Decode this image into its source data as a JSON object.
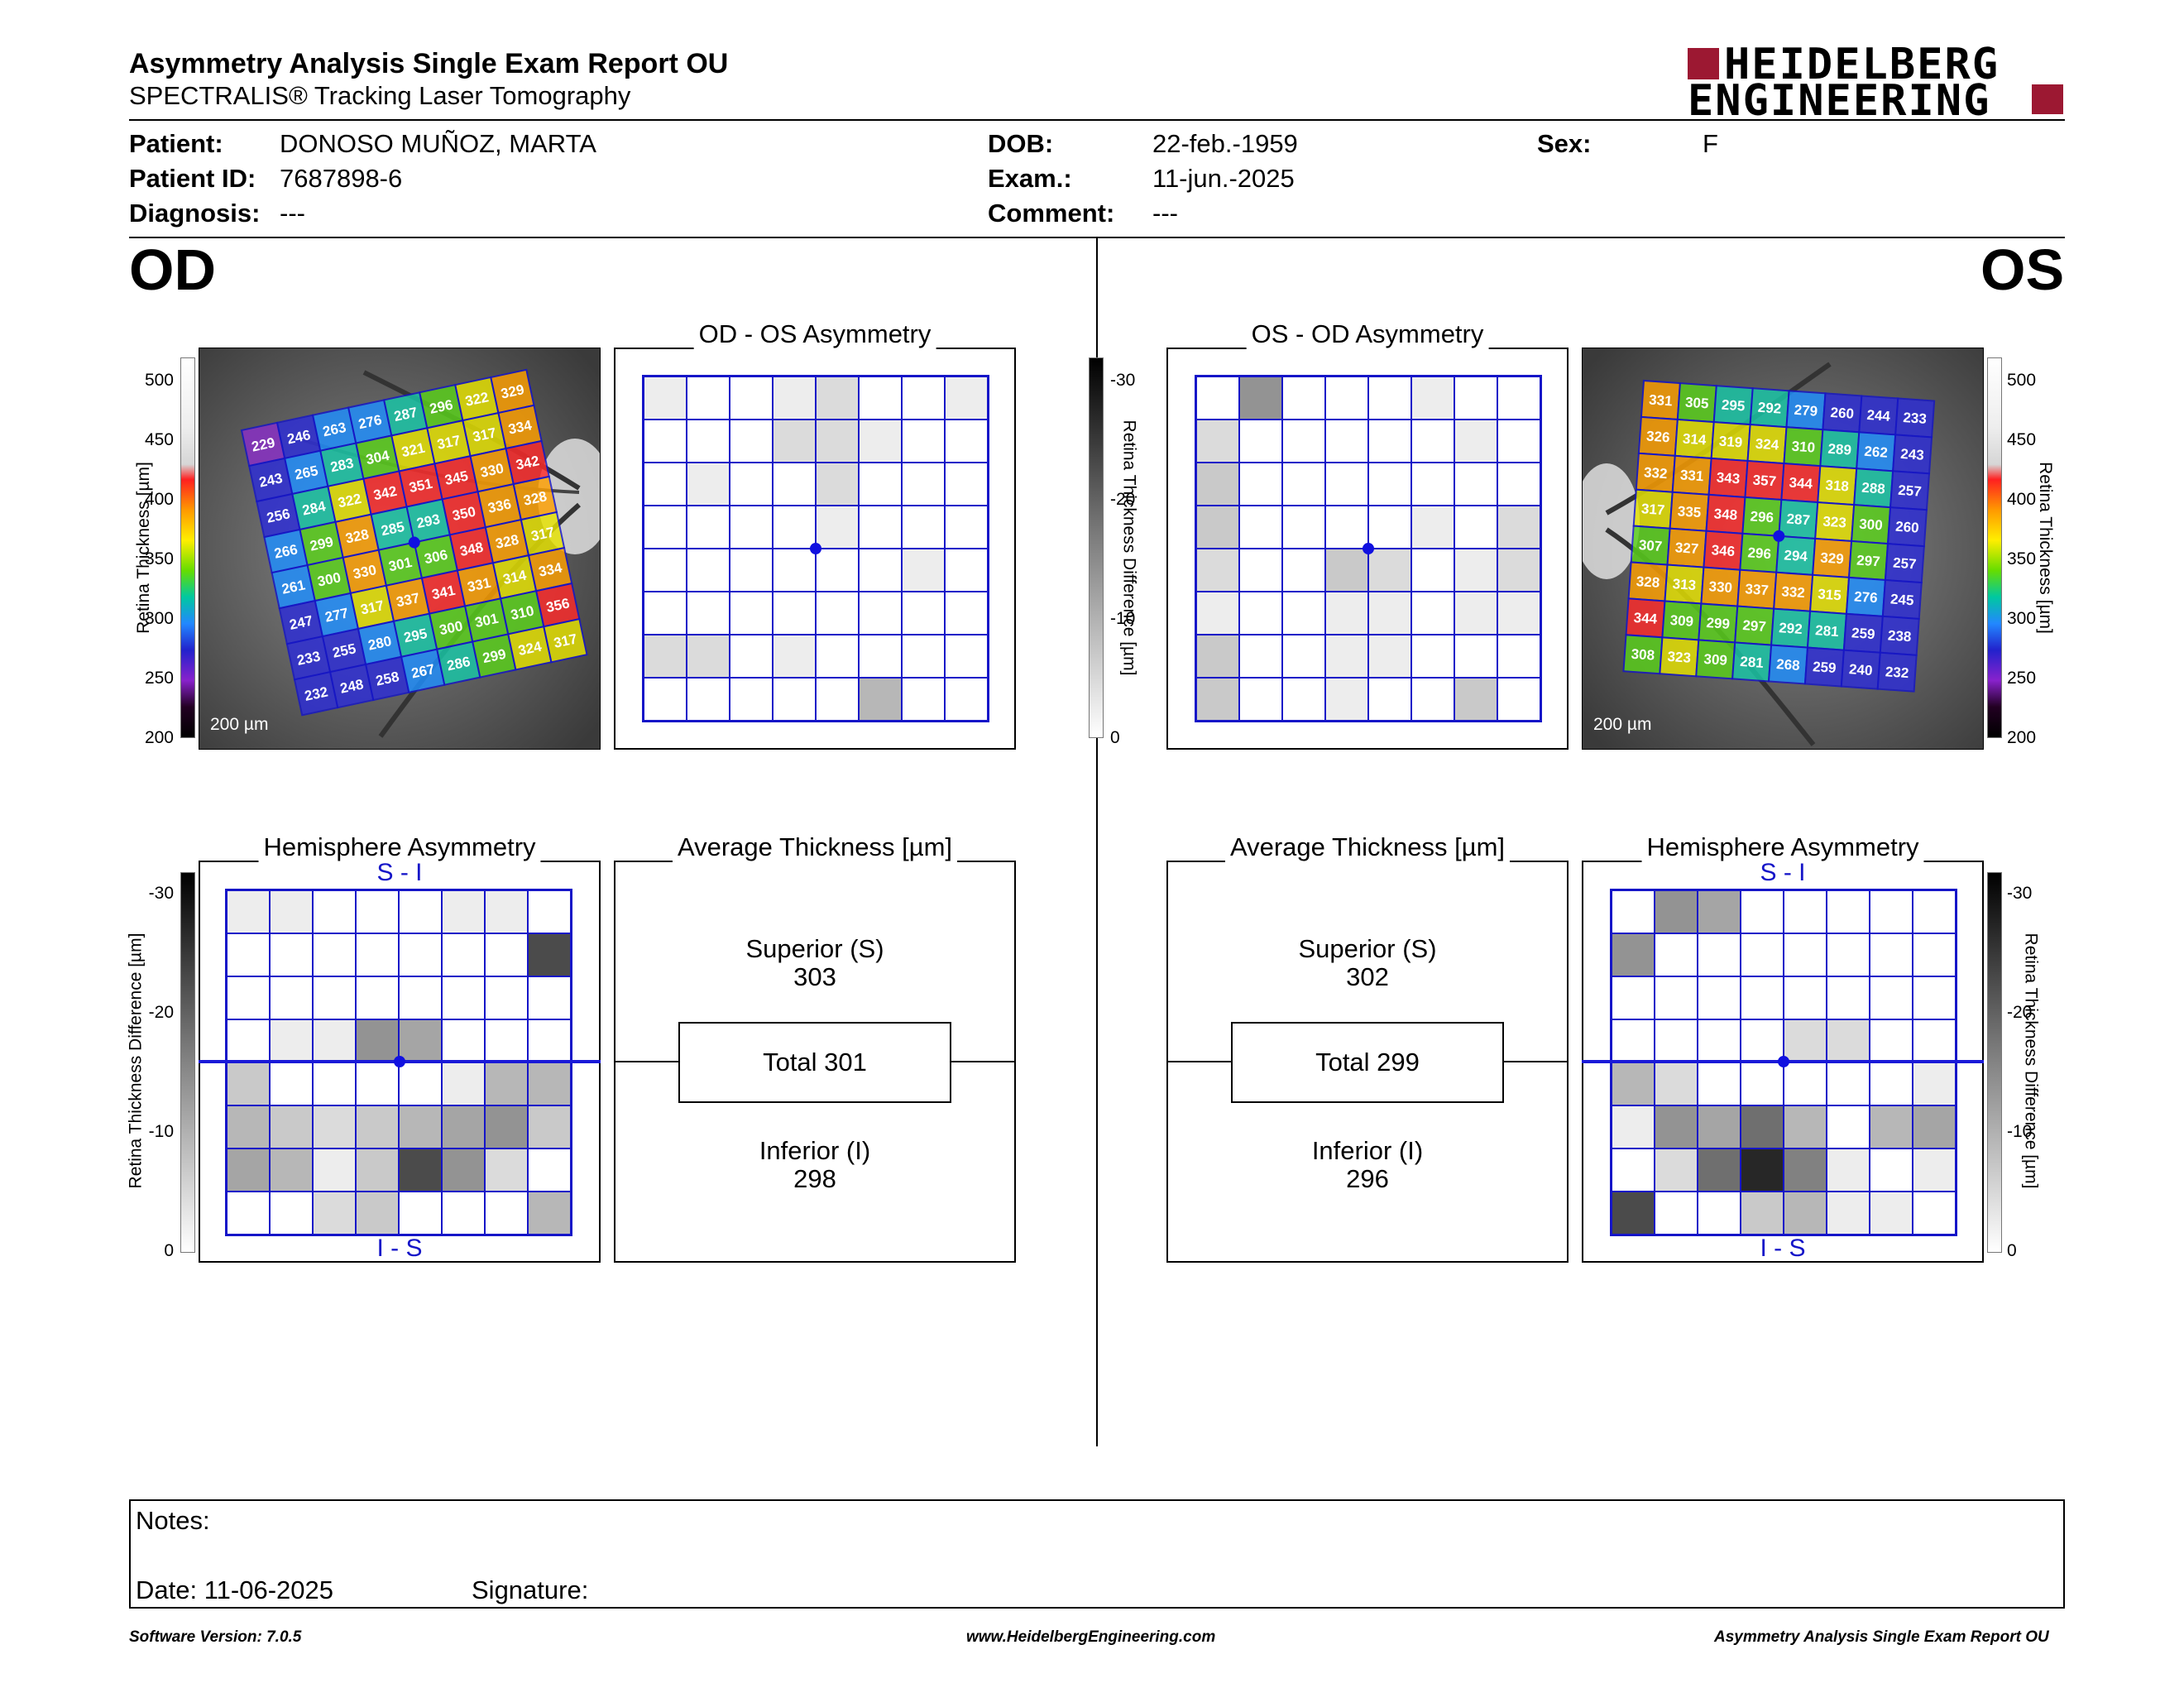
{
  "header": {
    "title": "Asymmetry Analysis Single Exam Report OU",
    "subtitle": "SPECTRALIS® Tracking Laser Tomography",
    "logo_line1": "HEIDELBERG",
    "logo_line2": "ENGINEERING",
    "brand_color": "#9c1832"
  },
  "patient": {
    "patient_label": "Patient:",
    "patient_value": "DONOSO MUÑOZ, MARTA",
    "id_label": "Patient ID:",
    "id_value": "7687898-6",
    "diagnosis_label": "Diagnosis:",
    "diagnosis_value": "---",
    "dob_label": "DOB:",
    "dob_value": "22-feb.-1959",
    "exam_label": "Exam.:",
    "exam_value": "11-jun.-2025",
    "comment_label": "Comment:",
    "comment_value": "---",
    "sex_label": "Sex:",
    "sex_value": "F"
  },
  "eyes": {
    "od": "OD",
    "os": "OS"
  },
  "thickness_scale": {
    "label": "Retina  Thickness [µm]",
    "ticks": [
      "500",
      "450",
      "400",
      "350",
      "300",
      "250",
      "200"
    ]
  },
  "difference_scale": {
    "label": "Retina Thickness Difference [µm]",
    "ticks": [
      "-30",
      "-20",
      "-10",
      "0"
    ]
  },
  "od": {
    "scale_bar": "200 µm",
    "thickness_grid": [
      [
        "229",
        "246",
        "263",
        "276",
        "287",
        "296",
        "322",
        "329"
      ],
      [
        "243",
        "265",
        "283",
        "304",
        "321",
        "317",
        "317",
        "334"
      ],
      [
        "256",
        "284",
        "322",
        "342",
        "351",
        "345",
        "330",
        "342"
      ],
      [
        "266",
        "299",
        "328",
        "285",
        "293",
        "350",
        "336",
        "328"
      ],
      [
        "261",
        "300",
        "330",
        "301",
        "306",
        "348",
        "328",
        "317"
      ],
      [
        "247",
        "277",
        "317",
        "337",
        "341",
        "331",
        "314",
        "334"
      ],
      [
        "233",
        "255",
        "280",
        "295",
        "300",
        "301",
        "310",
        "356"
      ],
      [
        "232",
        "248",
        "258",
        "267",
        "286",
        "299",
        "324",
        "317"
      ]
    ],
    "asymmetry_title": "OD - OS Asymmetry",
    "asymmetry_grid": [
      [
        1,
        0,
        0,
        1,
        2,
        0,
        0,
        1
      ],
      [
        0,
        0,
        0,
        2,
        2,
        1,
        0,
        0
      ],
      [
        0,
        1,
        0,
        0,
        2,
        0,
        0,
        0
      ],
      [
        0,
        0,
        0,
        0,
        1,
        0,
        0,
        0
      ],
      [
        0,
        0,
        0,
        0,
        0,
        0,
        1,
        0
      ],
      [
        0,
        0,
        0,
        0,
        0,
        0,
        0,
        0
      ],
      [
        2,
        2,
        0,
        1,
        0,
        0,
        0,
        0
      ],
      [
        0,
        0,
        0,
        0,
        0,
        4,
        0,
        0
      ]
    ],
    "hemisphere_title": "Hemisphere Asymmetry",
    "hemisphere_top": "S - I",
    "hemisphere_bottom": "I - S",
    "hemisphere_grid": [
      [
        1,
        1,
        0,
        0,
        0,
        1,
        1,
        0
      ],
      [
        0,
        0,
        0,
        0,
        0,
        0,
        0,
        10
      ],
      [
        0,
        0,
        0,
        0,
        0,
        0,
        0,
        0
      ],
      [
        0,
        1,
        1,
        6,
        5,
        0,
        0,
        0
      ],
      [
        3,
        0,
        0,
        0,
        0,
        1,
        4,
        4
      ],
      [
        4,
        3,
        2,
        3,
        4,
        5,
        6,
        3
      ],
      [
        5,
        4,
        1,
        3,
        10,
        6,
        2,
        0
      ],
      [
        0,
        0,
        2,
        3,
        0,
        0,
        0,
        4
      ]
    ],
    "average_title": "Average Thickness [µm]",
    "superior_label": "Superior (S)",
    "superior_value": "303",
    "total_text": "Total 301",
    "inferior_label": "Inferior (I)",
    "inferior_value": "298"
  },
  "os": {
    "scale_bar": "200 µm",
    "thickness_grid": [
      [
        "331",
        "305",
        "295",
        "292",
        "279",
        "260",
        "244",
        "233"
      ],
      [
        "326",
        "314",
        "319",
        "324",
        "310",
        "289",
        "262",
        "243"
      ],
      [
        "332",
        "331",
        "343",
        "357",
        "344",
        "318",
        "288",
        "257"
      ],
      [
        "317",
        "335",
        "348",
        "296",
        "287",
        "323",
        "300",
        "260"
      ],
      [
        "307",
        "327",
        "346",
        "296",
        "294",
        "329",
        "297",
        "257"
      ],
      [
        "328",
        "313",
        "330",
        "337",
        "332",
        "315",
        "276",
        "245"
      ],
      [
        "344",
        "309",
        "299",
        "297",
        "292",
        "281",
        "259",
        "238"
      ],
      [
        "308",
        "323",
        "309",
        "281",
        "268",
        "259",
        "240",
        "232"
      ]
    ],
    "asymmetry_title": "OS - OD Asymmetry",
    "asymmetry_grid": [
      [
        0,
        6,
        0,
        0,
        0,
        1,
        0,
        0
      ],
      [
        2,
        0,
        0,
        0,
        0,
        0,
        1,
        0
      ],
      [
        3,
        0,
        0,
        0,
        0,
        0,
        0,
        0
      ],
      [
        3,
        0,
        0,
        0,
        0,
        1,
        0,
        2
      ],
      [
        2,
        0,
        0,
        3,
        2,
        0,
        1,
        2
      ],
      [
        1,
        0,
        0,
        1,
        1,
        0,
        1,
        1
      ],
      [
        3,
        0,
        0,
        1,
        1,
        0,
        0,
        0
      ],
      [
        3,
        0,
        0,
        1,
        0,
        0,
        3,
        0
      ]
    ],
    "hemisphere_title": "Hemisphere Asymmetry",
    "hemisphere_top": "S - I",
    "hemisphere_bottom": "I - S",
    "hemisphere_grid": [
      [
        0,
        6,
        5,
        0,
        0,
        0,
        0,
        0
      ],
      [
        6,
        0,
        0,
        0,
        0,
        0,
        0,
        0
      ],
      [
        0,
        0,
        0,
        0,
        0,
        0,
        0,
        0
      ],
      [
        0,
        0,
        0,
        0,
        2,
        2,
        0,
        0
      ],
      [
        4,
        2,
        0,
        0,
        0,
        0,
        0,
        1
      ],
      [
        1,
        6,
        5,
        8,
        4,
        0,
        4,
        5
      ],
      [
        0,
        2,
        8,
        12,
        7,
        1,
        0,
        1
      ],
      [
        10,
        0,
        0,
        3,
        4,
        1,
        1,
        0
      ]
    ],
    "average_title": "Average Thickness [µm]",
    "superior_label": "Superior (S)",
    "superior_value": "302",
    "total_text": "Total 299",
    "inferior_label": "Inferior (I)",
    "inferior_value": "296"
  },
  "notes": {
    "notes_label": "Notes:",
    "date_label": "Date: 11-06-2025",
    "signature_label": "Signature:"
  },
  "footer": {
    "software": "Software Version: 7.0.5",
    "website": "www.HeidelbergEngineering.com",
    "report_name": "Asymmetry Analysis Single Exam Report OU"
  }
}
